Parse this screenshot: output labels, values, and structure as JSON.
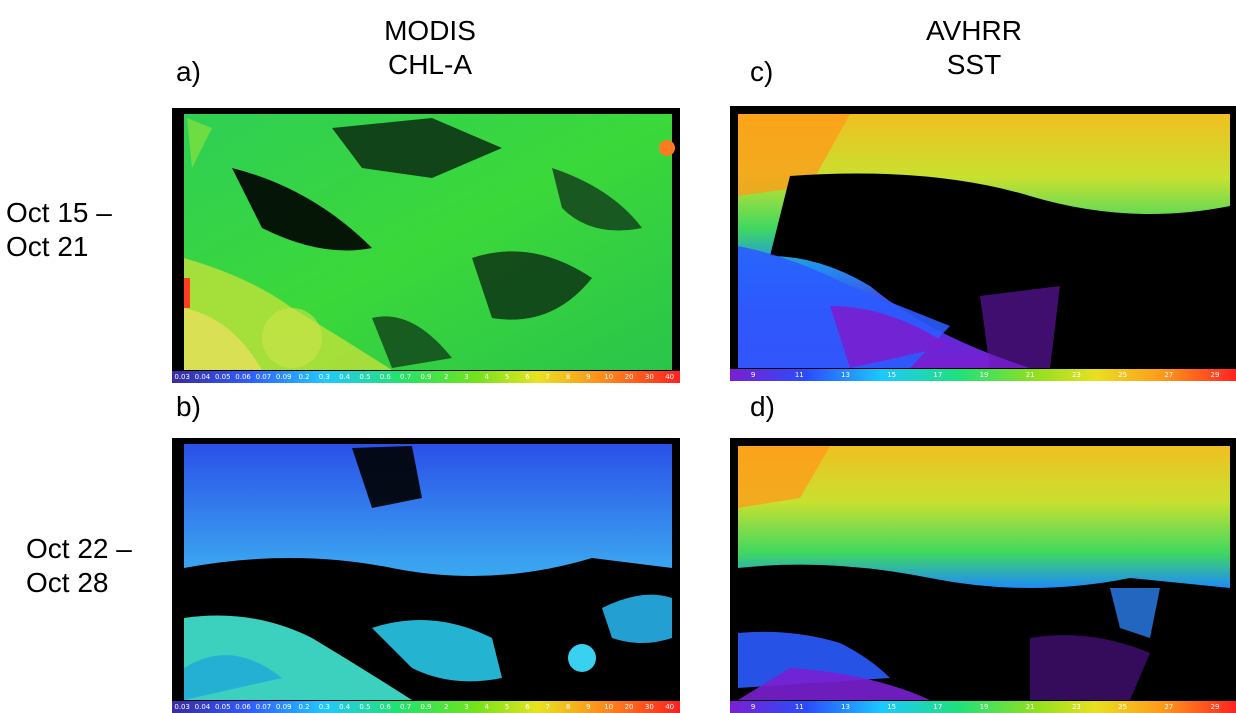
{
  "headers": {
    "left": {
      "line1": "MODIS",
      "line2": "CHL-A"
    },
    "right": {
      "line1": "AVHRR",
      "line2": "SST"
    }
  },
  "panels": {
    "a": {
      "label": "a)"
    },
    "b": {
      "label": "b)"
    },
    "c": {
      "label": "c)"
    },
    "d": {
      "label": "d)"
    }
  },
  "rows": {
    "row1": {
      "line1": "Oct 15 –",
      "line2": "Oct 21"
    },
    "row2": {
      "line1": "Oct 22 –",
      "line2": "Oct 28"
    }
  },
  "colorbars": {
    "chl": [
      "0.03",
      "0.04",
      "0.05",
      "0.06",
      "0.07",
      "0.09",
      "0.2",
      "0.3",
      "0.4",
      "0.5",
      "0.6",
      "0.7",
      "0.9",
      "2",
      "3",
      "4",
      "5",
      "6",
      "7",
      "8",
      "9",
      "10",
      "20",
      "30",
      "40"
    ],
    "sst": [
      "9",
      "11",
      "13",
      "15",
      "17",
      "19",
      "21",
      "23",
      "25",
      "27",
      "29"
    ]
  },
  "colors": {
    "chl_gradient": [
      "#3a2b9e",
      "#2f5bff",
      "#21c8ff",
      "#22e36a",
      "#73e31b",
      "#e8e320",
      "#ff8a1a",
      "#ff2020"
    ],
    "sst_gradient": [
      "#7a1fd0",
      "#2a4cff",
      "#1cc9ff",
      "#21e07a",
      "#8fe020",
      "#e9e020",
      "#ff9a1a",
      "#ff2020"
    ]
  }
}
